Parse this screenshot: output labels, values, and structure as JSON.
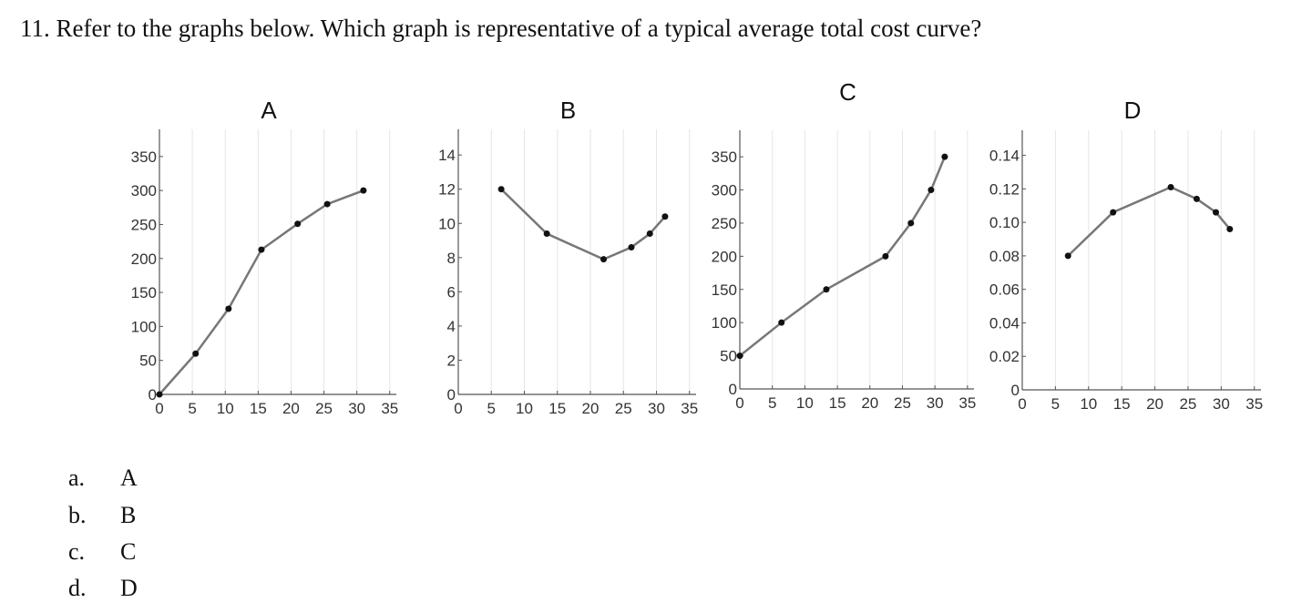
{
  "question": "11. Refer to the graphs below. Which graph is representative of a typical average total cost curve?",
  "options": [
    {
      "letter": "a.",
      "text": "A"
    },
    {
      "letter": "b.",
      "text": "B"
    },
    {
      "letter": "c.",
      "text": "C"
    },
    {
      "letter": "d.",
      "text": "D"
    }
  ],
  "chart_data": [
    {
      "type": "line",
      "title": "A",
      "x": [
        0,
        5.5,
        10.5,
        15.5,
        21,
        25.5,
        31
      ],
      "values": [
        0,
        60,
        126,
        213,
        251,
        280,
        300
      ],
      "xlim": [
        0,
        36
      ],
      "xticks": [
        0,
        5,
        10,
        15,
        20,
        25,
        30,
        35
      ],
      "ylim": [
        0,
        390
      ],
      "yticks": [
        0,
        50,
        100,
        150,
        200,
        250,
        300,
        350
      ],
      "grid": true,
      "color": "#777"
    },
    {
      "type": "line",
      "title": "B",
      "x": [
        6.5,
        13.4,
        22,
        26.2,
        29,
        31.3
      ],
      "values": [
        12,
        9.4,
        7.9,
        8.6,
        9.4,
        10.4
      ],
      "xlim": [
        0,
        36
      ],
      "xticks": [
        0,
        5,
        10,
        15,
        20,
        25,
        30,
        35
      ],
      "ylim": [
        0,
        15.5
      ],
      "yticks": [
        0,
        2,
        4,
        6,
        8,
        10,
        12,
        14
      ],
      "grid": true,
      "color": "#777"
    },
    {
      "type": "line",
      "title": "C",
      "x": [
        0,
        6.4,
        13.3,
        22.4,
        26.3,
        29.4,
        31.5
      ],
      "values": [
        50,
        100,
        150,
        200,
        250,
        300,
        350
      ],
      "xlim": [
        0,
        36
      ],
      "xticks": [
        0,
        5,
        10,
        15,
        20,
        25,
        30,
        35
      ],
      "ylim": [
        0,
        390
      ],
      "yticks": [
        0,
        50,
        100,
        150,
        200,
        250,
        300,
        350
      ],
      "grid": true,
      "color": "#777"
    },
    {
      "type": "line",
      "title": "D",
      "x": [
        6.9,
        13.7,
        22.4,
        26.3,
        29.2,
        31.3
      ],
      "values": [
        0.08,
        0.106,
        0.121,
        0.114,
        0.106,
        0.096
      ],
      "xlim": [
        0,
        36
      ],
      "xticks": [
        0,
        5,
        10,
        15,
        20,
        25,
        30,
        35
      ],
      "ylim": [
        0,
        0.155
      ],
      "yticks": [
        0,
        0.02,
        0.04,
        0.06,
        0.08,
        {
          "value": 0.1,
          "label": "0.10"
        },
        0.12,
        0.14
      ],
      "grid": true,
      "color": "#777"
    }
  ]
}
